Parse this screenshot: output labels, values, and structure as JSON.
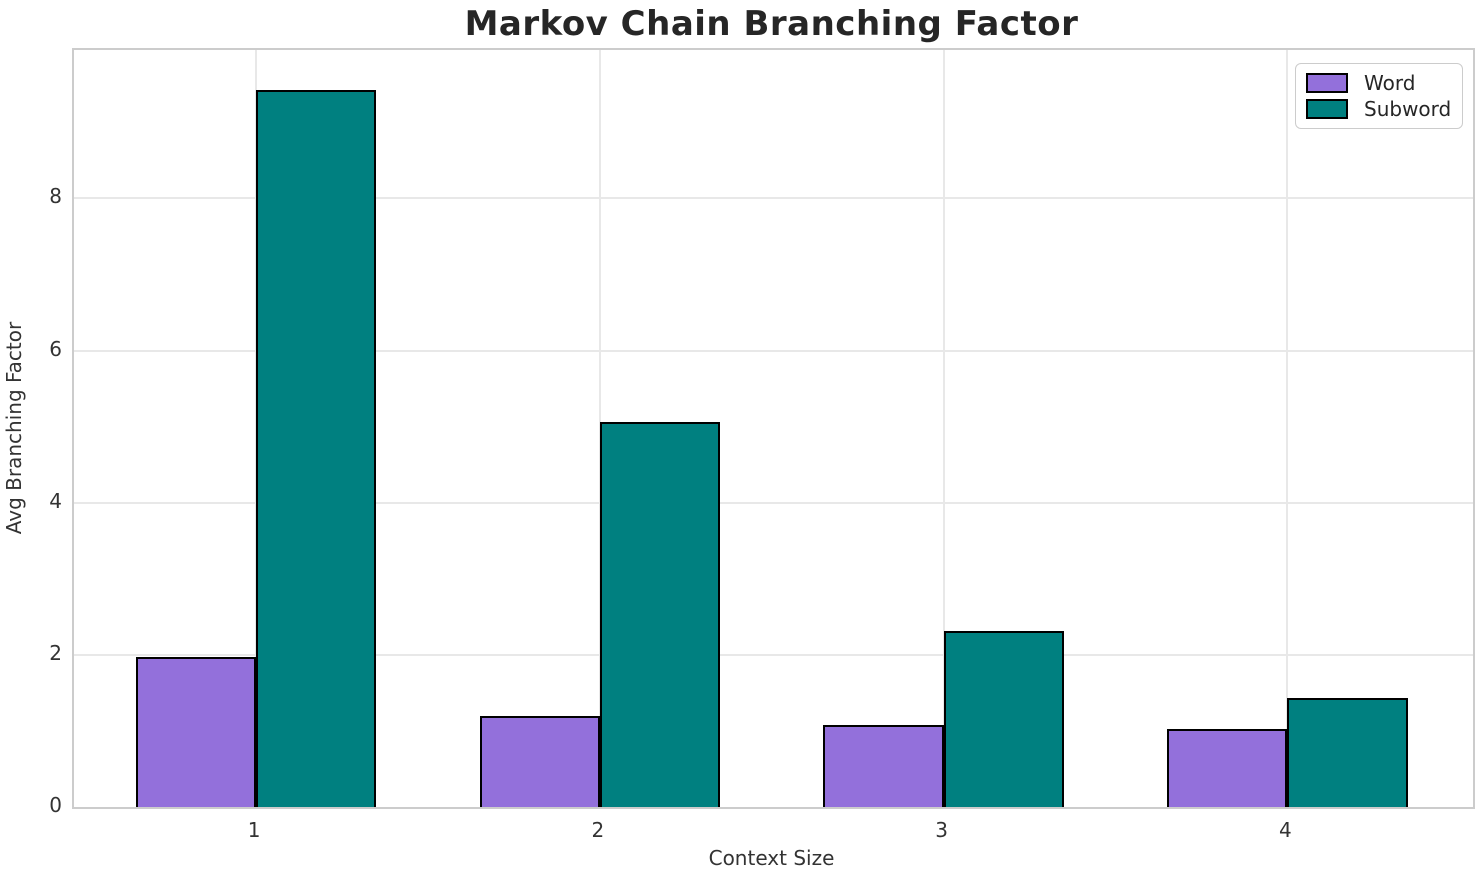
{
  "chart_data": {
    "type": "bar",
    "title": "Markov Chain Branching Factor",
    "xlabel": "Context Size",
    "ylabel": "Avg Branching Factor",
    "categories": [
      "1",
      "2",
      "3",
      "4"
    ],
    "series": [
      {
        "name": "Word",
        "color": "#9370DB",
        "values": [
          1.97,
          1.19,
          1.08,
          1.03
        ]
      },
      {
        "name": "Subword",
        "color": "#008080",
        "values": [
          9.42,
          5.06,
          2.31,
          1.43
        ]
      }
    ],
    "ylim": [
      0,
      9.95
    ],
    "yticks": [
      0,
      2,
      4,
      6,
      8
    ],
    "bar_edge_color": "#000000",
    "grid": true,
    "legend_position": "upper right"
  }
}
